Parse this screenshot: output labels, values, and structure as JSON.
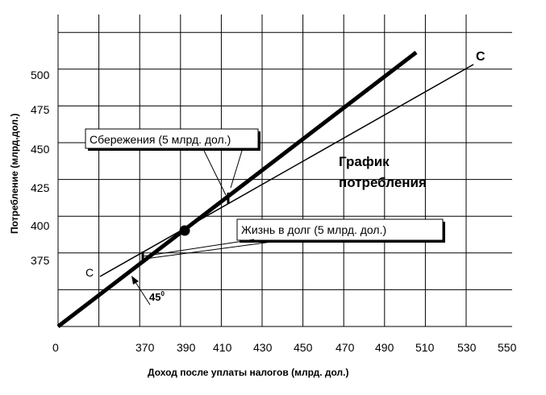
{
  "chart_data": {
    "type": "line",
    "title": "",
    "xlabel": "Доход после уплаты налогов (млрд. дол.)",
    "ylabel": "Потребление (млрд.дол.)",
    "xlim": [
      350,
      550
    ],
    "ylim": [
      350,
      520
    ],
    "x_ticks": [
      "0",
      "370",
      "390",
      "410",
      "430",
      "450",
      "470",
      "490",
      "510",
      "530",
      "550"
    ],
    "y_ticks": [
      "375",
      "400",
      "425",
      "450",
      "475",
      "500"
    ],
    "grid": true,
    "series": [
      {
        "name": "C",
        "x": [
          370,
          530
        ],
        "y": [
          370,
          502
        ],
        "style": "thin"
      },
      {
        "name": "",
        "x": [
          350,
          517
        ],
        "y": [
          350,
          512
        ],
        "style": "bold-45"
      }
    ],
    "equilibrium_point": {
      "x": 390,
      "y": 390
    },
    "annotations": {
      "savings": "Сбережения (5 млрд. дол.)",
      "borrowing": "Жизнь в долг (5 млрд. дол.)",
      "consumption_graph_line1": "График",
      "consumption_graph_line2": "потребления",
      "c_label_start": "С",
      "c_label_end": "С",
      "angle_label": "45",
      "angle_sup": "0"
    }
  }
}
